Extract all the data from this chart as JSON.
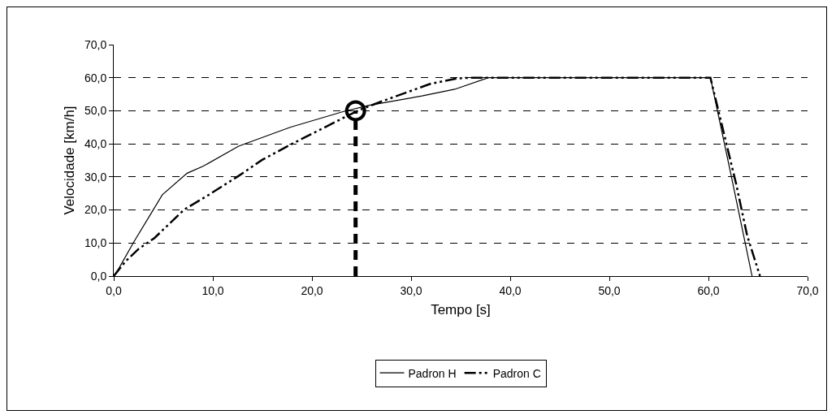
{
  "chart_data": {
    "type": "line",
    "xlabel": "Tempo [s]",
    "ylabel": "Velocidade [km/h]",
    "xlim": [
      0,
      70
    ],
    "ylim": [
      0,
      70
    ],
    "xticks": [
      {
        "value": 0,
        "label": "0,0"
      },
      {
        "value": 10,
        "label": "10,0"
      },
      {
        "value": 20,
        "label": "20,0"
      },
      {
        "value": 30,
        "label": "30,0"
      },
      {
        "value": 40,
        "label": "40,0"
      },
      {
        "value": 50,
        "label": "50,0"
      },
      {
        "value": 60,
        "label": "60,0"
      },
      {
        "value": 70,
        "label": "70,0"
      }
    ],
    "yticks": [
      {
        "value": 0,
        "label": "0,0"
      },
      {
        "value": 10,
        "label": "10,0"
      },
      {
        "value": 20,
        "label": "20,0"
      },
      {
        "value": 30,
        "label": "30,0"
      },
      {
        "value": 40,
        "label": "40,0"
      },
      {
        "value": 50,
        "label": "50,0"
      },
      {
        "value": 60,
        "label": "60,0"
      },
      {
        "value": 70,
        "label": "70,0"
      }
    ],
    "grid": "y",
    "legend": "bottom",
    "marker": "none",
    "series": [
      {
        "name": "Padron H",
        "color": "#000000",
        "line_style": "solid",
        "x": [
          0,
          0.55,
          2.0,
          4.0,
          4.9,
          7.4,
          9.0,
          12.6,
          17.8,
          23.2,
          25.7,
          31.1,
          34.4,
          37.8,
          60.2,
          62.3,
          64.4
        ],
        "values": [
          0,
          2.5,
          10.2,
          20.1,
          24.6,
          31.1,
          33.2,
          39.3,
          45.0,
          49.8,
          51.6,
          54.5,
          56.5,
          60,
          60,
          30.3,
          0
        ]
      },
      {
        "name": "Padron C",
        "color": "#000000",
        "line_style": "dashed",
        "x": [
          0,
          1.2,
          2.5,
          4.1,
          7.1,
          9.6,
          12.6,
          15.0,
          17.8,
          20.5,
          23.2,
          24.9,
          27.0,
          32.0,
          34.7,
          36.0,
          60.2,
          62.8,
          63.9,
          65.2
        ],
        "values": [
          0,
          4.5,
          8.2,
          11.5,
          20.1,
          24.6,
          30.3,
          35.2,
          39.7,
          43.8,
          47.9,
          50.4,
          52.8,
          58.2,
          59.8,
          60,
          60,
          27.8,
          12.3,
          0
        ]
      },
      {
        "type": "line",
        "color": "#000000",
        "line_style": "dashed",
        "x": [
          24.4,
          24.4
        ],
        "values": [
          0,
          50
        ]
      },
      {
        "type": "scatter",
        "color": "#000000",
        "marker": "circle",
        "x": [
          24.4
        ],
        "values": [
          50
        ]
      }
    ]
  }
}
